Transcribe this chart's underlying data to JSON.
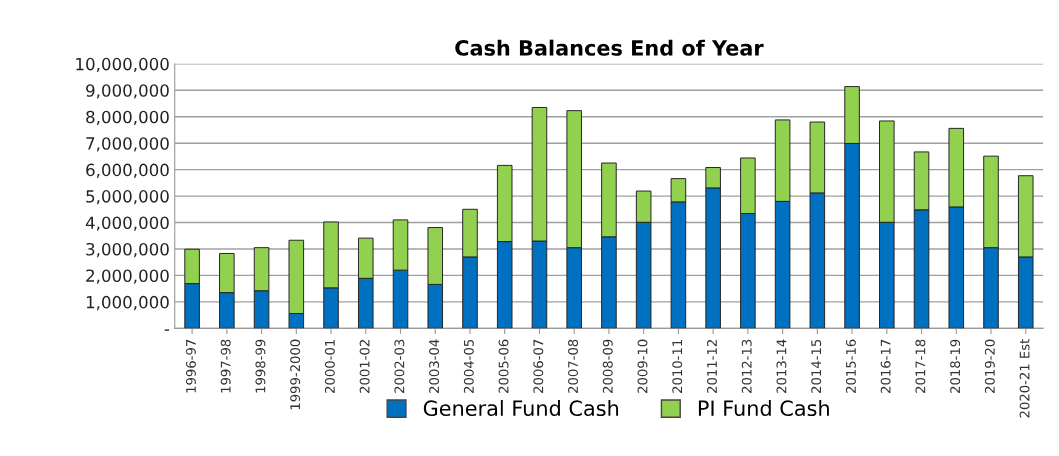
{
  "chart_data": {
    "type": "bar",
    "title": "Cash Balances End of Year",
    "stacked": true,
    "categories": [
      "1996-97",
      "1997-98",
      "1998-99",
      "1999-2000",
      "2000-01",
      "2001-02",
      "2002-03",
      "2003-04",
      "2004-05",
      "2005-06",
      "2006-07",
      "2007-08",
      "2008-09",
      "2009-10",
      "2010-11",
      "2011-12",
      "2012-13",
      "2013-14",
      "2014-15",
      "2015-16",
      "2016-17",
      "2017-18",
      "2018-19",
      "2019-20",
      "2020-21 Est"
    ],
    "series": [
      {
        "name": "General Fund Cash",
        "color": "#0070c0",
        "values": [
          1690000,
          1350000,
          1420000,
          560000,
          1530000,
          1890000,
          2200000,
          1660000,
          2700000,
          3280000,
          3300000,
          3050000,
          3460000,
          4010000,
          4780000,
          5310000,
          4340000,
          4800000,
          5120000,
          6990000,
          4010000,
          4480000,
          4590000,
          3050000,
          2700000
        ]
      },
      {
        "name": "PI Fund Cash",
        "color": "#92d050",
        "values": [
          1300000,
          1480000,
          1630000,
          2770000,
          2490000,
          1520000,
          1900000,
          2150000,
          1800000,
          2880000,
          5050000,
          5180000,
          2790000,
          1180000,
          880000,
          770000,
          2100000,
          3080000,
          2680000,
          2150000,
          3830000,
          2190000,
          2970000,
          3460000,
          3070000
        ]
      }
    ],
    "ylim": [
      0,
      10000000
    ],
    "yticks": [
      {
        "value": 0,
        "label": "-"
      },
      {
        "value": 1000000,
        "label": "1,000,000"
      },
      {
        "value": 2000000,
        "label": "2,000,000"
      },
      {
        "value": 3000000,
        "label": "3,000,000"
      },
      {
        "value": 4000000,
        "label": "4,000,000"
      },
      {
        "value": 5000000,
        "label": "5,000,000"
      },
      {
        "value": 6000000,
        "label": "6,000,000"
      },
      {
        "value": 7000000,
        "label": "7,000,000"
      },
      {
        "value": 8000000,
        "label": "8,000,000"
      },
      {
        "value": 9000000,
        "label": "9,000,000"
      },
      {
        "value": 10000000,
        "label": "10,000,000"
      }
    ],
    "grid": "y",
    "legend": "bottom"
  }
}
